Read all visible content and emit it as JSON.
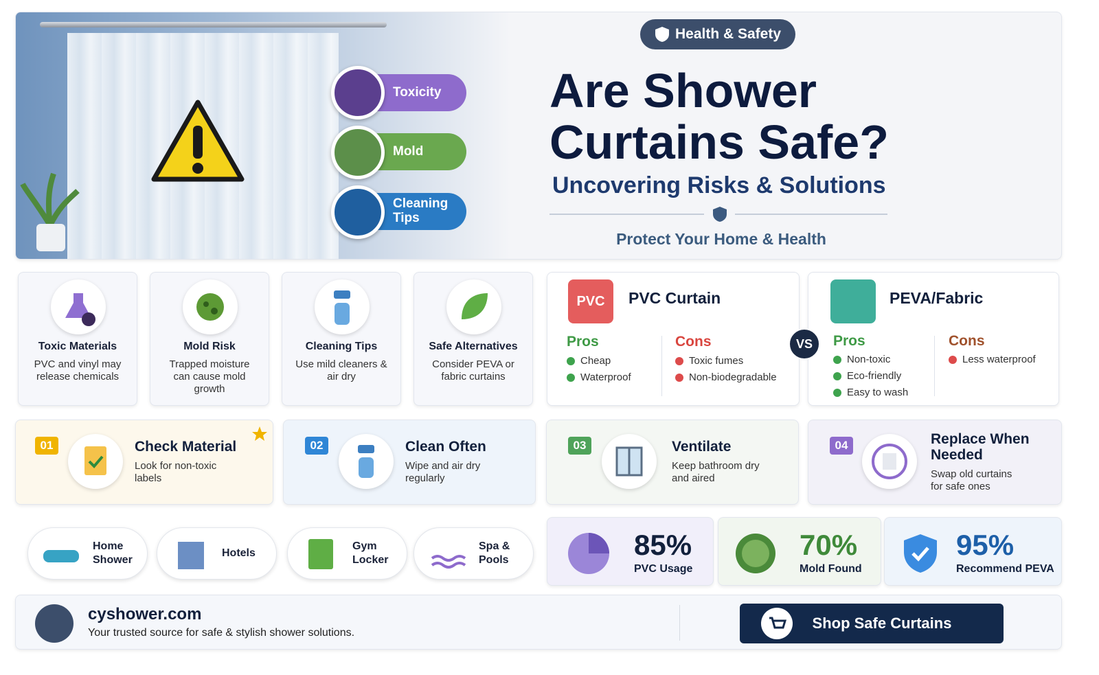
{
  "hero": {
    "badge": "Health & Safety",
    "title_line1": "Are Shower",
    "title_line2": "Curtains Safe?",
    "subtitle": "Uncovering Risks & Solutions",
    "tagline": "Protect Your Home & Health",
    "tags": [
      "Toxicity",
      "Mold",
      "Cleaning Tips"
    ]
  },
  "cards": [
    {
      "title": "Toxic Materials",
      "text": "PVC and vinyl may release chemicals"
    },
    {
      "title": "Mold Risk",
      "text": "Trapped moisture can cause mold growth"
    },
    {
      "title": "Cleaning Tips",
      "text": "Use mild cleaners & air dry"
    },
    {
      "title": "Safe Alternatives",
      "text": "Consider PEVA or fabric curtains"
    }
  ],
  "comparison": {
    "vs": "VS",
    "left": {
      "icon": "PVC",
      "name": "PVC Curtain",
      "pros_label": "Pros",
      "pros": [
        "Cheap",
        "Waterproof"
      ],
      "cons_label": "Cons",
      "cons": [
        "Toxic fumes",
        "Non-biodegradable"
      ]
    },
    "right": {
      "name": "PEVA/Fabric",
      "pros_label": "Pros",
      "pros": [
        "Non-toxic",
        "Eco-friendly",
        "Easy to wash"
      ],
      "cons_label": "Cons",
      "cons": [
        "Less waterproof"
      ]
    }
  },
  "steps": [
    {
      "number": "01",
      "title": "Check Material",
      "text": "Look for non-toxic labels"
    },
    {
      "number": "02",
      "title": "Clean Often",
      "text": "Wipe and air dry regularly"
    },
    {
      "number": "03",
      "title": "Ventilate",
      "text": "Keep bathroom dry and aired"
    },
    {
      "number": "04",
      "title": "Replace When Needed",
      "text": "Swap old curtains for safe ones"
    }
  ],
  "uses": [
    "Home Shower",
    "Hotels",
    "Gym Locker",
    "Spa & Pools"
  ],
  "stats": [
    {
      "value": "85%",
      "label": "PVC Usage"
    },
    {
      "value": "70%",
      "label": "Mold Found"
    },
    {
      "value": "95%",
      "label": "Recommend PEVA"
    }
  ],
  "footer": {
    "site": "cyshower.com",
    "text": "Your trusted source for safe & stylish shower solutions.",
    "button": "Shop Safe Curtains"
  }
}
